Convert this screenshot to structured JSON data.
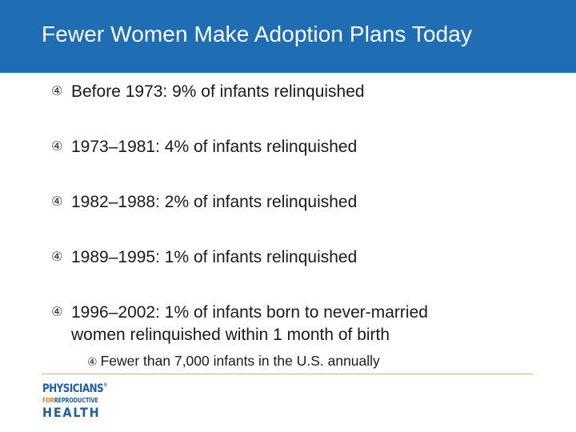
{
  "slide": {
    "title": "Fewer Women Make Adoption Plans Today",
    "bullet_marker": "④",
    "bullets": [
      {
        "text": "Before 1973: 9% of infants relinquished"
      },
      {
        "text": "1973–1981: 4% of infants relinquished"
      },
      {
        "text": "1982–1988: 2% of infants relinquished"
      },
      {
        "text": "1989–1995: 1% of infants relinquished"
      },
      {
        "text_line1": "1996–2002: 1% of infants born to never-married",
        "text_line2": "women relinquished within 1 month of birth"
      }
    ],
    "sub_bullet": "Fewer than 7,000 infants in the U.S. annually"
  },
  "logo": {
    "line1": "PHYSICIANS",
    "registered": "®",
    "line2_for": "FOR",
    "line2_rest": "REPRODUCTIVE",
    "line3": "HEALTH"
  },
  "colors": {
    "header_bg": "#1f6db2",
    "logo_blue": "#1f5f9e",
    "logo_orange": "#e07b1f",
    "divider": "#c9b97a"
  }
}
